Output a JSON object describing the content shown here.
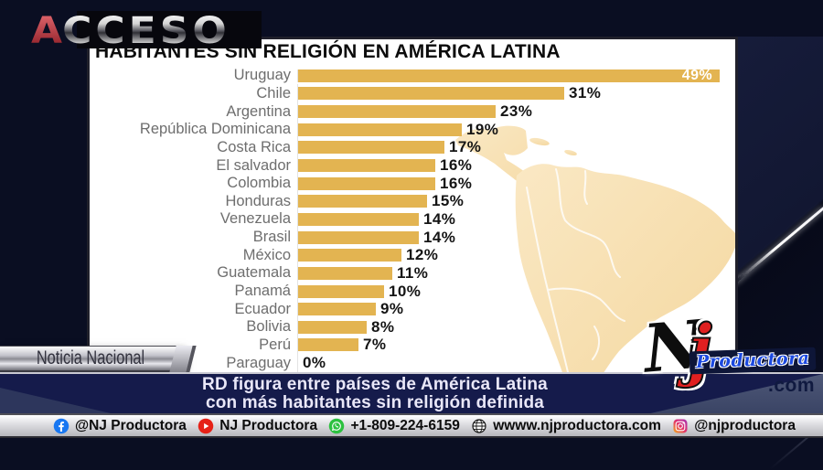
{
  "show_logo": {
    "accent": "A",
    "rest": "CCESO"
  },
  "chart_data": {
    "type": "bar",
    "orientation": "horizontal",
    "title": "HABITANTES SIN RELIGIÓN EN AMÉRICA LATINA",
    "unit": "%",
    "categories": [
      "Uruguay",
      "Chile",
      "Argentina",
      "República Dominicana",
      "Costa Rica",
      "El salvador",
      "Colombia",
      "Honduras",
      "Venezuela",
      "Brasil",
      "México",
      "Guatemala",
      "Panamá",
      "Ecuador",
      "Bolivia",
      "Perú",
      "Paraguay"
    ],
    "values": [
      49,
      31,
      23,
      19,
      17,
      16,
      16,
      15,
      14,
      14,
      12,
      11,
      10,
      9,
      8,
      7,
      0
    ],
    "value_labels": [
      "49%",
      "31%",
      "23%",
      "19%",
      "17%",
      "16%",
      "16%",
      "15%",
      "14%",
      "14%",
      "12%",
      "11%",
      "10%",
      "9%",
      "8%",
      "7%",
      "0%"
    ],
    "xlim": [
      0,
      52
    ],
    "bar_color": "#e3b451",
    "grid": false,
    "legend": false,
    "value_label_position": "end-of-bar, max value labeled inside bar in white"
  },
  "ribbon": {
    "label": "Noticia Nacional"
  },
  "headline": {
    "line1": "RD figura entre países de América Latina",
    "line2": "con más habitantes sin religión definida"
  },
  "brand_logo": {
    "letter_n": "N",
    "letter_j": "j",
    "name": "Productora",
    "tld": ".com"
  },
  "footer": {
    "items": [
      {
        "icon": "facebook-icon",
        "label": "@NJ Productora"
      },
      {
        "icon": "youtube-icon",
        "label": "NJ Productora"
      },
      {
        "icon": "whatsapp-icon",
        "label": "+1-809-224-6159"
      },
      {
        "icon": "globe-icon",
        "label": "wwww.njproductora.com"
      },
      {
        "icon": "instagram-icon",
        "label": "@njproductora"
      }
    ]
  },
  "colors": {
    "background": "#0a0e22",
    "bar": "#e3b451",
    "map": "#f8dfae",
    "banner_blue": "#151b4b",
    "accent_red": "#b9353e",
    "footer_silver": "#d9d9dd"
  }
}
